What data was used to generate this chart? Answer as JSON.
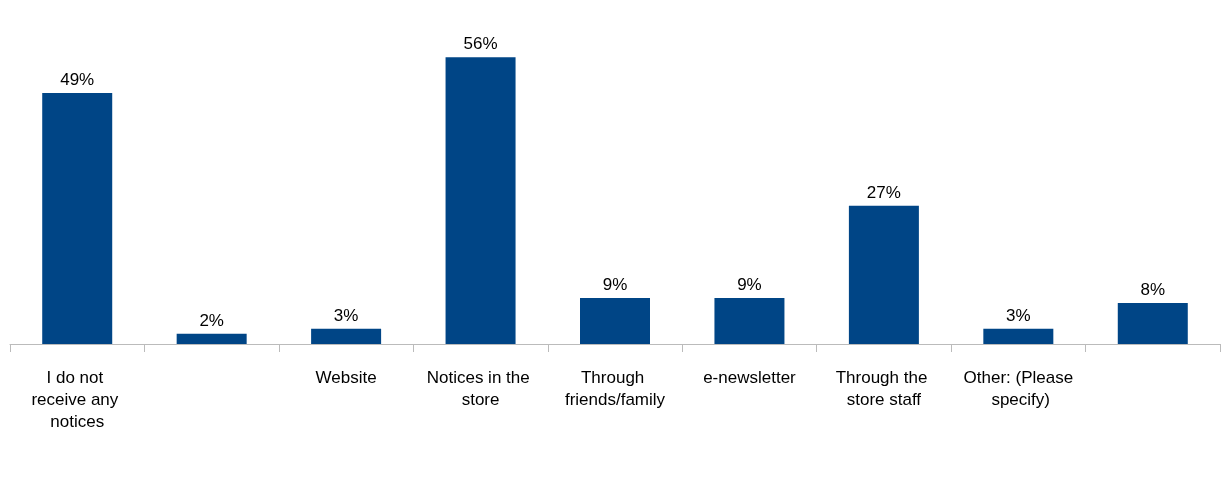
{
  "chart_data": {
    "type": "bar",
    "categories": [
      "I do not receive any notices",
      null,
      "Website",
      "Notices in the store",
      "Through friends/family",
      "e-newsletter",
      "Through the store staff",
      "Other: (Please specify)",
      null
    ],
    "values": [
      49,
      2,
      3,
      56,
      9,
      9,
      27,
      3,
      8
    ],
    "value_labels": [
      "49%",
      "2%",
      "3%",
      "56%",
      "9%",
      "9%",
      "27%",
      "3%",
      "8%"
    ],
    "color": "#004586"
  }
}
